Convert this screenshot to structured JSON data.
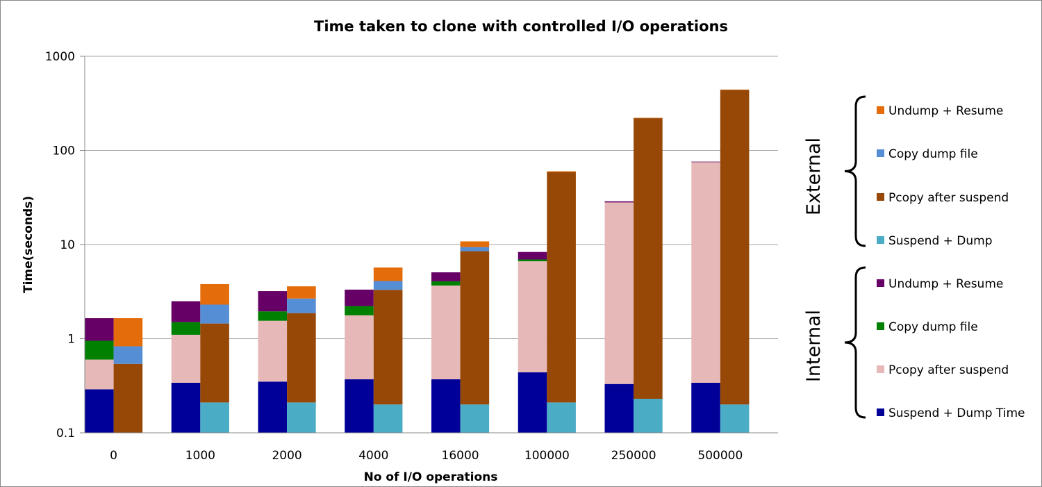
{
  "chart_data": {
    "type": "bar",
    "stacked": true,
    "title": "Time taken to clone with controlled I/O operations",
    "xlabel": "No of I/O operations",
    "ylabel": "Time(seconds)",
    "yscale": "log",
    "ylim": [
      0.1,
      1000
    ],
    "yticks": [
      "0.1",
      "1",
      "10",
      "100",
      "1000"
    ],
    "grid": true,
    "legend_position": "right",
    "categories": [
      "0",
      "1000",
      "2000",
      "4000",
      "16000",
      "100000",
      "250000",
      "500000"
    ],
    "groups": [
      {
        "name": "Internal",
        "series": [
          {
            "name": "Suspend + Dump Time",
            "color": "#000099",
            "values": [
              0.29,
              0.34,
              0.35,
              0.37,
              0.37,
              0.44,
              0.33,
              0.34
            ]
          },
          {
            "name": "Pcopy after suspend",
            "color": "#E6B9B8",
            "values": [
              0.31,
              0.76,
              1.2,
              1.4,
              3.3,
              6.2,
              27.67,
              74.66
            ]
          },
          {
            "name": "Copy dump file",
            "color": "#008000",
            "values": [
              0.35,
              0.4,
              0.4,
              0.45,
              0.4,
              0.3,
              0.0,
              0.0
            ]
          },
          {
            "name": "Undump + Resume",
            "color": "#660066",
            "values": [
              0.7,
              1.0,
              1.25,
              1.1,
              1.0,
              1.4,
              0.8,
              1.0
            ]
          }
        ]
      },
      {
        "name": "External",
        "series": [
          {
            "name": "Suspend + Dump",
            "color": "#4BACC6",
            "values": [
              0.0,
              0.21,
              0.21,
              0.2,
              0.2,
              0.21,
              0.23,
              0.2
            ]
          },
          {
            "name": "Pcopy after suspend",
            "color": "#974806",
            "values": [
              0.54,
              1.24,
              1.66,
              3.1,
              8.3,
              58.79,
              219.77,
              439.8
            ]
          },
          {
            "name": "Copy dump file",
            "color": "#558ED5",
            "values": [
              0.29,
              0.85,
              0.8,
              0.8,
              0.9,
              0.0,
              0.0,
              0.0
            ]
          },
          {
            "name": "Undump + Resume",
            "color": "#E46C0A",
            "values": [
              0.82,
              1.5,
              0.93,
              1.6,
              1.4,
              1.0,
              2.0,
              3.0
            ]
          }
        ]
      }
    ],
    "legend": {
      "external": [
        "Undump + Resume",
        "Copy dump file",
        "Pcopy after suspend",
        "Suspend + Dump"
      ],
      "internal": [
        "Undump + Resume",
        "Copy dump file",
        "Pcopy after suspend",
        "Suspend + Dump Time"
      ]
    }
  }
}
